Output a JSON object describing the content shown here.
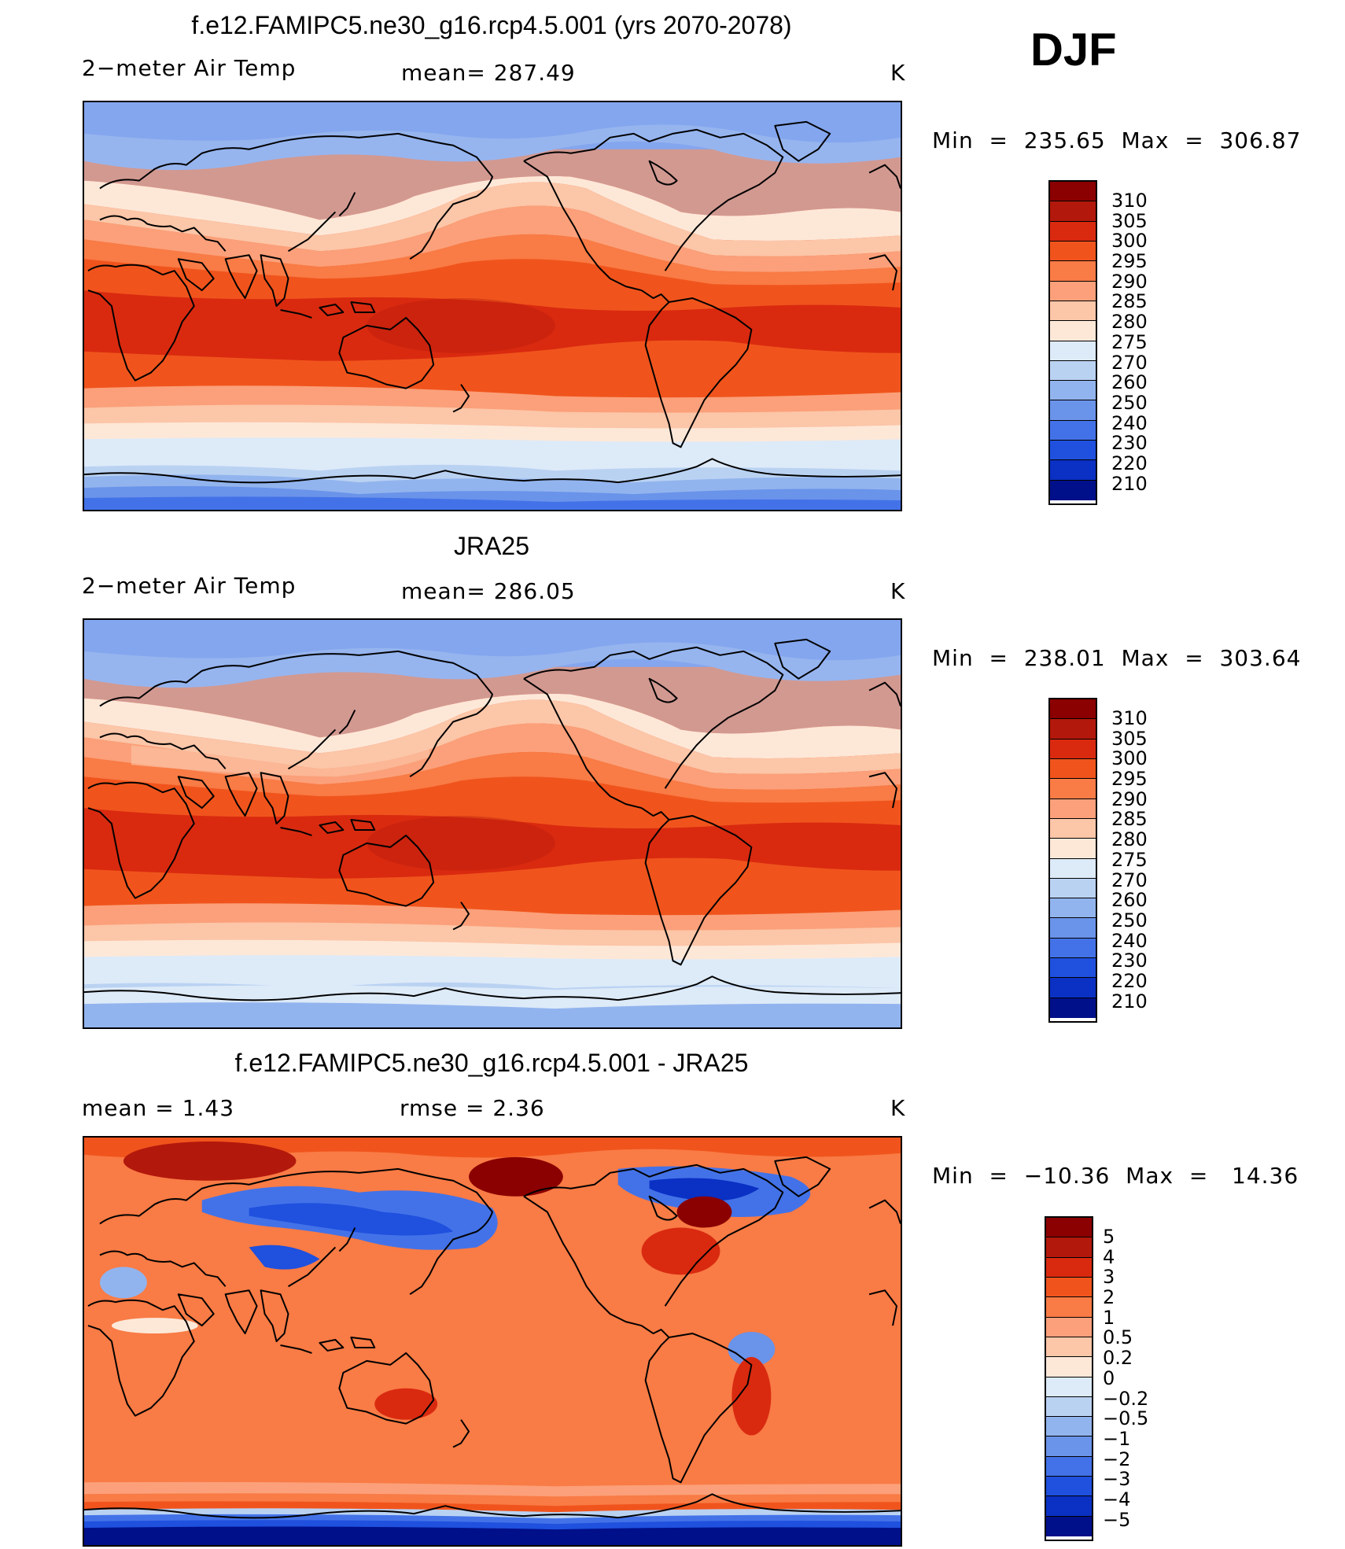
{
  "season": "DJF",
  "panels": [
    {
      "title": "f.e12.FAMIPC5.ne30_g16.rcp4.5.001 (yrs 2070-2078)",
      "left_label": "2−meter Air Temp",
      "center_label": "mean=  287.49",
      "units": "K",
      "minmax": "Min  =  235.65  Max  =  306.87",
      "kind": "abs"
    },
    {
      "title": "JRA25",
      "left_label": "2−meter Air Temp",
      "center_label": "mean=  286.05",
      "units": "K",
      "minmax": "Min  =  238.01  Max  =  303.64",
      "kind": "abs"
    },
    {
      "title": "f.e12.FAMIPC5.ne30_g16.rcp4.5.001 - JRA25",
      "left_label": "mean  =     1.43",
      "center_label": "rmse  =     2.36",
      "units": "K",
      "minmax": "Min  =  −10.36  Max  =   14.36",
      "kind": "diff"
    }
  ],
  "colorbar_abs": {
    "labels": [
      "310",
      "305",
      "300",
      "295",
      "290",
      "285",
      "280",
      "275",
      "270",
      "260",
      "250",
      "240",
      "230",
      "220",
      "210"
    ],
    "colors": [
      "#8b0000",
      "#b3180c",
      "#d92a10",
      "#f0541c",
      "#f97b45",
      "#fba07a",
      "#fcc6a8",
      "#fde8d8",
      "#ddeaf8",
      "#bad2f2",
      "#92b4ee",
      "#6a93ea",
      "#4372e8",
      "#1f50de",
      "#0a30c4",
      "#00108a"
    ]
  },
  "colorbar_diff": {
    "labels": [
      "5",
      "4",
      "3",
      "2",
      "1",
      "0.5",
      "0.2",
      "0",
      "−0.2",
      "−0.5",
      "−1",
      "−2",
      "−3",
      "−4",
      "−5"
    ],
    "colors": [
      "#8b0000",
      "#b3180c",
      "#d92a10",
      "#f0541c",
      "#f97b45",
      "#fba07a",
      "#fcc6a8",
      "#fde8d8",
      "#ddeaf8",
      "#bad2f2",
      "#92b4ee",
      "#6a93ea",
      "#4372e8",
      "#1f50de",
      "#0a30c4",
      "#00108a"
    ]
  }
}
